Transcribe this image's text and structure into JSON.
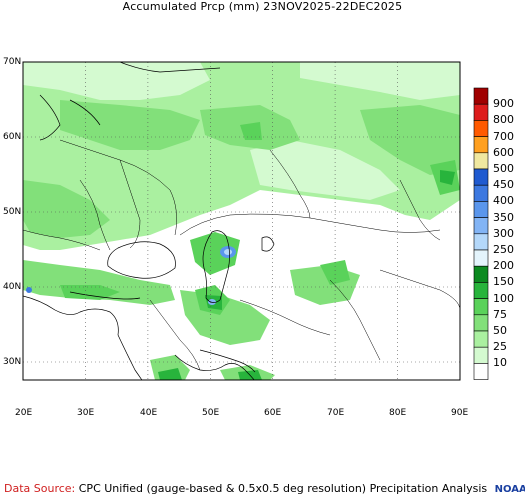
{
  "title": "Accumulated Prcp (mm) 23NOV2025-22DEC2025",
  "map": {
    "lat_labels": [
      "70N",
      "60N",
      "50N",
      "40N",
      "30N"
    ],
    "lon_labels": [
      "20E",
      "30E",
      "40E",
      "50E",
      "60E",
      "70E",
      "80E",
      "90E"
    ],
    "lat_values": [
      70,
      60,
      50,
      40,
      30
    ],
    "lon_values": [
      20,
      30,
      40,
      50,
      60,
      70,
      80,
      90
    ],
    "extent": {
      "lon_min": 20,
      "lon_max": 90,
      "lat_min": 24,
      "lat_max": 70
    }
  },
  "legend": {
    "bins": [
      {
        "label": "900",
        "color": "#a00000"
      },
      {
        "label": "800",
        "color": "#dd1c1c"
      },
      {
        "label": "700",
        "color": "#ff5a00"
      },
      {
        "label": "600",
        "color": "#ffa020"
      },
      {
        "label": "500",
        "color": "#f0e8a0"
      },
      {
        "label": "450",
        "color": "#1f5ad0"
      },
      {
        "label": "400",
        "color": "#3c78e0"
      },
      {
        "label": "350",
        "color": "#5a96ec"
      },
      {
        "label": "300",
        "color": "#82b4f5"
      },
      {
        "label": "250",
        "color": "#b4d8fa"
      },
      {
        "label": "200",
        "color": "#e4f4fc"
      },
      {
        "label": "150",
        "color": "#0c8a20"
      },
      {
        "label": "100",
        "color": "#28b43c"
      },
      {
        "label": "75",
        "color": "#5ad25a"
      },
      {
        "label": "50",
        "color": "#82e07a"
      },
      {
        "label": "25",
        "color": "#aaf0a0"
      },
      {
        "label": "10",
        "color": "#d4fad0"
      },
      {
        "label": "",
        "color": "#ffffff"
      }
    ]
  },
  "footer": {
    "source_label": "Data Source:",
    "source_text": "CPC Unified (gauge-based & 0.5x0.5 deg resolution) Precipitation Analysis",
    "logo": "NOAA"
  }
}
